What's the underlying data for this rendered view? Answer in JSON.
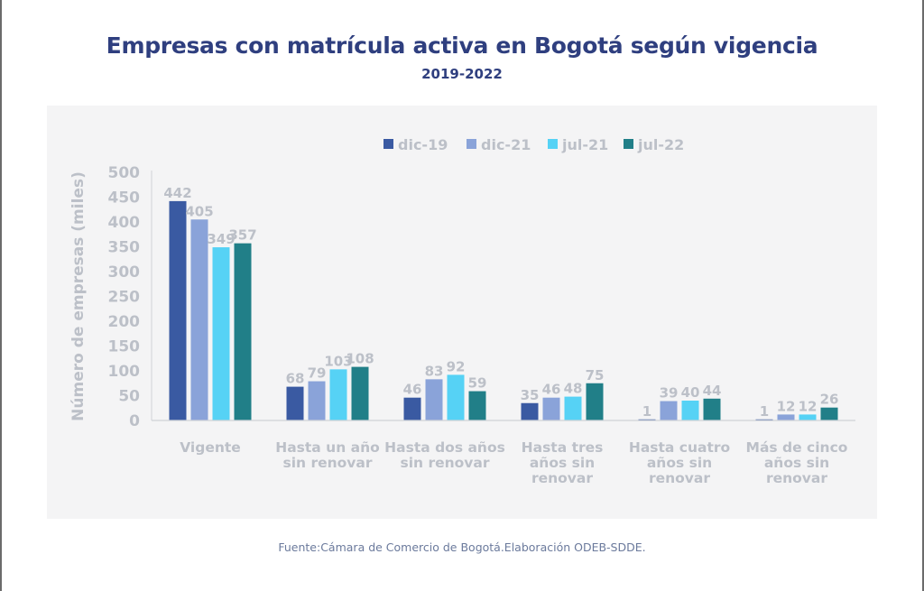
{
  "page": {
    "title": "Empresas con matrícula activa en Bogotá según vigencia",
    "subtitle": "2019-2022",
    "source": "Fuente:Cámara de Comercio de Bogotá.Elaboración ODEB-SDDE."
  },
  "colors": {
    "title": "#2f3f7f",
    "text_muted": "#bcc0c8",
    "panel_bg": "#f4f4f5"
  },
  "chart_data": {
    "type": "bar",
    "title": "Empresas con matrícula activa en Bogotá según vigencia",
    "subtitle": "2019-2022",
    "xlabel": "",
    "ylabel": "Número de empresas (miles)",
    "ylim": [
      0,
      500
    ],
    "yticks": [
      0,
      50,
      100,
      150,
      200,
      250,
      300,
      350,
      400,
      450,
      500
    ],
    "grid": false,
    "legend_position": "top-center",
    "categories": [
      [
        "Vigente"
      ],
      [
        "Hasta un año",
        "sin renovar"
      ],
      [
        "Hasta dos años",
        "sin renovar"
      ],
      [
        "Hasta tres",
        "años sin",
        "renovar"
      ],
      [
        "Hasta cuatro",
        "años sin",
        "renovar"
      ],
      [
        "Más de cinco",
        "años sin",
        "renovar"
      ]
    ],
    "series": [
      {
        "name": "dic-19",
        "color": "#3a5aa2",
        "values": [
          442,
          68,
          46,
          35,
          1,
          1
        ]
      },
      {
        "name": "dic-21",
        "color": "#8aa3d9",
        "values": [
          405,
          79,
          83,
          46,
          39,
          12
        ]
      },
      {
        "name": "jul-21",
        "color": "#56d2f5",
        "values": [
          349,
          103,
          92,
          48,
          40,
          12
        ]
      },
      {
        "name": "jul-22",
        "color": "#217f88",
        "values": [
          357,
          108,
          59,
          75,
          44,
          26
        ]
      }
    ]
  }
}
